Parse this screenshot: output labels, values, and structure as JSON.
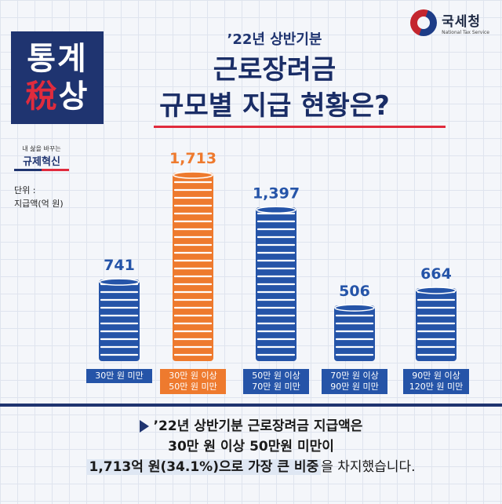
{
  "agency": {
    "name_kr": "국세청",
    "name_en": "National Tax Service"
  },
  "badge": {
    "line1": "통계",
    "line2_a": "稅",
    "line2_b": "상"
  },
  "tag": {
    "line1": "내 삶을 바꾸는",
    "line2": "규제혁신"
  },
  "unit": {
    "line1": "단위 :",
    "line2": "지급액(억 원)"
  },
  "header": {
    "subtitle": "’22년 상반기분",
    "title_line1": "근로장려금",
    "title_line2": "규모별 지급 현황은?"
  },
  "colors": {
    "primary": "#2554a8",
    "highlight": "#ee7a2e",
    "label_bg": "#1f3470"
  },
  "chart_data": {
    "type": "bar",
    "title": "규모별 지급 현황",
    "ylabel": "지급액(억 원)",
    "categories": [
      [
        "30만 원 미만"
      ],
      [
        "30만 원 이상",
        "50만 원 미만"
      ],
      [
        "50만 원 이상",
        "70만 원 미만"
      ],
      [
        "70만 원 이상",
        "90만 원 미만"
      ],
      [
        "90만 원 이상",
        "120만 원 미만"
      ]
    ],
    "values": [
      741,
      1713,
      1397,
      506,
      664
    ],
    "value_labels": [
      "741",
      "1,713",
      "1,397",
      "506",
      "664"
    ],
    "highlight_index": 1,
    "ylim": [
      0,
      1713
    ]
  },
  "summary": {
    "line1": "’22년 상반기분 근로장려금 지급액은",
    "line2": "30만 원 이상 50만원 미만이",
    "line3_highlight": "1,713억 원(34.1%)으로 가장 큰 비중",
    "line3_rest": "을 차지했습니다."
  }
}
